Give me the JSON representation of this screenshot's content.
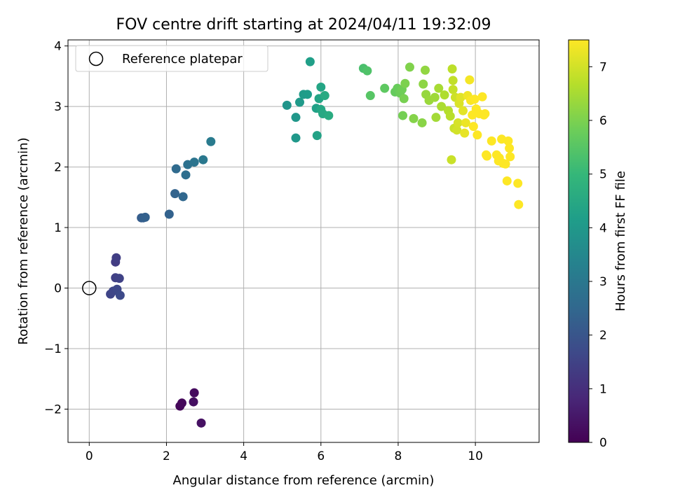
{
  "chart_data": {
    "type": "scatter",
    "title": "FOV centre drift starting at 2024/04/11 19:32:09",
    "xlabel": "Angular distance from reference (arcmin)",
    "ylabel": "Rotation from reference (arcmin)",
    "xlim": [
      -0.55,
      11.65
    ],
    "ylim": [
      -2.55,
      4.1
    ],
    "xticks": [
      0,
      2,
      4,
      6,
      8,
      10
    ],
    "yticks": [
      -2,
      -1,
      0,
      1,
      2,
      3,
      4
    ],
    "grid": true,
    "legend": {
      "position": "top-left",
      "entries": [
        "Reference platepar"
      ]
    },
    "colorbar": {
      "label": "Hours from first FF file",
      "min": 0,
      "max": 7.5,
      "ticks": [
        0,
        1,
        2,
        3,
        4,
        5,
        6,
        7
      ],
      "colormap": "viridis"
    },
    "reference_point": {
      "x": 0,
      "y": 0,
      "marker": "open-circle",
      "label": "Reference platepar"
    },
    "series": [
      {
        "marker_color": "by-hours",
        "points": [
          [
            2.35,
            -1.95,
            0.1
          ],
          [
            2.4,
            -1.9,
            0.15
          ],
          [
            2.72,
            -1.73,
            0.22
          ],
          [
            2.7,
            -1.88,
            0.3
          ],
          [
            2.9,
            -2.23,
            0.35
          ],
          [
            0.68,
            0.43,
            1.35
          ],
          [
            0.7,
            0.5,
            1.4
          ],
          [
            0.68,
            0.17,
            1.45
          ],
          [
            0.78,
            0.16,
            1.5
          ],
          [
            0.55,
            -0.1,
            1.55
          ],
          [
            0.62,
            -0.05,
            1.6
          ],
          [
            0.72,
            -0.02,
            1.65
          ],
          [
            0.8,
            -0.12,
            1.7
          ],
          [
            1.35,
            1.16,
            2.2
          ],
          [
            1.4,
            1.16,
            2.25
          ],
          [
            1.45,
            1.17,
            2.3
          ],
          [
            2.07,
            1.22,
            2.35
          ],
          [
            2.22,
            1.56,
            2.4
          ],
          [
            2.43,
            1.51,
            2.5
          ],
          [
            2.25,
            1.97,
            2.6
          ],
          [
            2.5,
            1.87,
            2.7
          ],
          [
            2.55,
            2.04,
            2.8
          ],
          [
            2.72,
            2.08,
            2.9
          ],
          [
            2.95,
            2.12,
            3.0
          ],
          [
            3.15,
            2.42,
            3.1
          ],
          [
            5.12,
            3.02,
            3.9
          ],
          [
            5.35,
            2.82,
            3.95
          ],
          [
            5.35,
            2.48,
            4.0
          ],
          [
            5.45,
            3.07,
            4.05
          ],
          [
            5.55,
            3.2,
            4.1
          ],
          [
            5.65,
            3.2,
            4.15
          ],
          [
            5.72,
            3.74,
            4.2
          ],
          [
            5.88,
            2.97,
            4.25
          ],
          [
            5.9,
            2.52,
            4.3
          ],
          [
            5.95,
            3.13,
            4.35
          ],
          [
            6.0,
            3.32,
            4.4
          ],
          [
            6.0,
            2.95,
            4.45
          ],
          [
            6.05,
            2.88,
            4.5
          ],
          [
            6.1,
            3.18,
            4.55
          ],
          [
            6.2,
            2.85,
            4.6
          ],
          [
            7.1,
            3.63,
            5.3
          ],
          [
            7.2,
            3.59,
            5.4
          ],
          [
            7.28,
            3.18,
            5.5
          ],
          [
            7.65,
            3.3,
            5.6
          ],
          [
            7.92,
            3.24,
            5.7
          ],
          [
            7.98,
            3.3,
            5.75
          ],
          [
            8.05,
            3.22,
            5.8
          ],
          [
            8.1,
            3.28,
            5.85
          ],
          [
            8.12,
            2.85,
            5.9
          ],
          [
            8.15,
            3.13,
            5.95
          ],
          [
            8.18,
            3.38,
            6.0
          ],
          [
            8.3,
            3.65,
            6.05
          ],
          [
            8.4,
            2.8,
            6.1
          ],
          [
            8.62,
            2.73,
            6.15
          ],
          [
            8.65,
            3.37,
            6.2
          ],
          [
            8.7,
            3.6,
            6.25
          ],
          [
            8.72,
            3.2,
            6.3
          ],
          [
            8.8,
            3.1,
            6.35
          ],
          [
            8.95,
            3.15,
            6.4
          ],
          [
            8.98,
            2.82,
            6.45
          ],
          [
            9.05,
            3.3,
            6.5
          ],
          [
            9.12,
            3.0,
            6.55
          ],
          [
            9.2,
            3.19,
            6.6
          ],
          [
            9.3,
            2.93,
            6.65
          ],
          [
            9.35,
            2.84,
            6.7
          ],
          [
            9.4,
            3.62,
            6.75
          ],
          [
            9.42,
            3.43,
            6.8
          ],
          [
            9.42,
            3.28,
            6.85
          ],
          [
            9.45,
            2.64,
            6.9
          ],
          [
            9.48,
            3.15,
            6.95
          ],
          [
            9.52,
            2.61,
            7.0
          ],
          [
            9.55,
            2.73,
            7.05
          ],
          [
            9.58,
            3.05,
            7.1
          ],
          [
            9.62,
            3.15,
            7.15
          ],
          [
            9.68,
            2.93,
            7.2
          ],
          [
            9.72,
            2.56,
            7.25
          ],
          [
            9.75,
            2.73,
            7.3
          ],
          [
            9.8,
            3.18,
            7.35
          ],
          [
            9.85,
            3.44,
            7.4
          ],
          [
            9.88,
            3.1,
            7.45
          ],
          [
            9.92,
            2.86,
            7.5
          ],
          [
            9.95,
            2.67,
            7.5
          ],
          [
            9.98,
            3.12,
            7.5
          ],
          [
            10.02,
            2.96,
            7.5
          ],
          [
            10.05,
            2.53,
            7.5
          ],
          [
            10.1,
            2.88,
            7.5
          ],
          [
            10.18,
            3.16,
            7.5
          ],
          [
            10.22,
            2.86,
            7.5
          ],
          [
            10.25,
            2.88,
            7.5
          ],
          [
            10.28,
            2.2,
            7.5
          ],
          [
            10.3,
            2.18,
            7.5
          ],
          [
            10.42,
            2.43,
            7.5
          ],
          [
            10.55,
            2.2,
            7.5
          ],
          [
            10.6,
            2.1,
            7.5
          ],
          [
            10.62,
            2.15,
            7.5
          ],
          [
            10.68,
            2.46,
            7.5
          ],
          [
            10.72,
            2.06,
            7.5
          ],
          [
            10.78,
            2.05,
            7.5
          ],
          [
            10.82,
            1.77,
            7.5
          ],
          [
            10.85,
            2.43,
            7.5
          ],
          [
            10.88,
            2.31,
            7.5
          ],
          [
            10.9,
            2.17,
            7.5
          ],
          [
            11.1,
            1.73,
            7.5
          ],
          [
            11.12,
            1.38,
            7.5
          ],
          [
            9.38,
            2.12,
            6.9
          ]
        ]
      }
    ]
  }
}
